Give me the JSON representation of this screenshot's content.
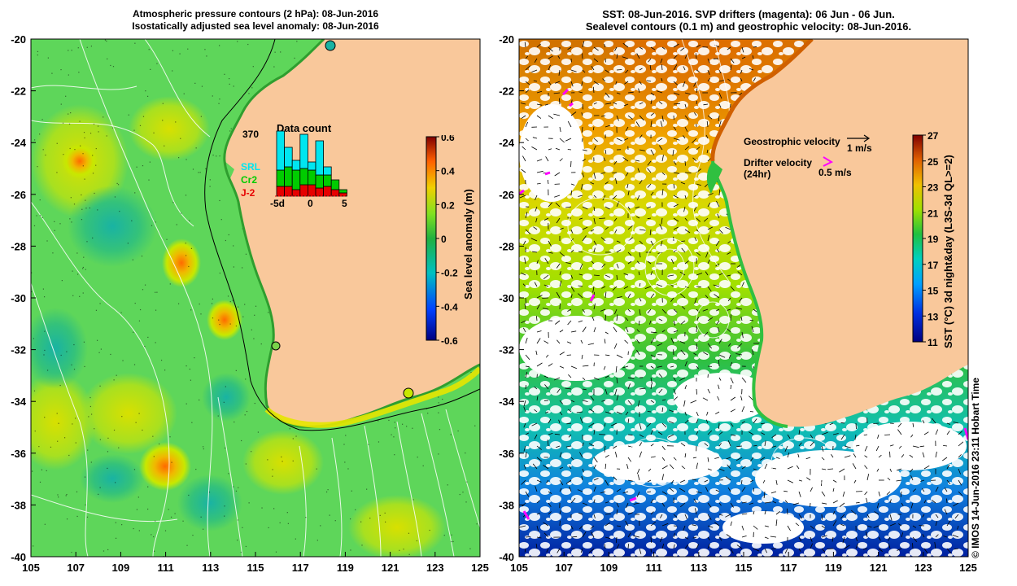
{
  "left_panel": {
    "title_line1": "Atmospheric pressure contours (2 hPa): 08-Jun-2016",
    "title_line2": "Isostatically adjusted sea level anomaly: 08-Jun-2016",
    "y_ticks": [
      "-20",
      "-22",
      "-24",
      "-26",
      "-28",
      "-30",
      "-32",
      "-34",
      "-36",
      "-38",
      "-40"
    ],
    "x_ticks": [
      "105",
      "107",
      "109",
      "111",
      "113",
      "115",
      "117",
      "119",
      "121",
      "123",
      "125"
    ],
    "colorbar": {
      "title": "Sea level anomaly (m)",
      "ticks": [
        "0.6",
        "0.4",
        "0.2",
        "0",
        "-0.2",
        "-0.4",
        "-0.6"
      ]
    },
    "data_count": {
      "title": "Data count",
      "max_label": "370",
      "legend": [
        "SRL",
        "Cr2",
        "J-2"
      ],
      "x_labels": [
        "-5d",
        "0",
        "5"
      ],
      "colors": {
        "SRL": "#00e6f0",
        "Cr2": "#00cc00",
        "J-2": "#e60000"
      }
    }
  },
  "right_panel": {
    "title_line1": "SST: 08-Jun-2016. SVP drifters (magenta): 06 Jun - 06 Jun.",
    "title_line2": "Sealevel contours (0.1 m) and geostrophic velocity: 08-Jun-2016.",
    "y_ticks": [
      "-20",
      "-22",
      "-24",
      "-26",
      "-28",
      "-30",
      "-32",
      "-34",
      "-36",
      "-38",
      "-40"
    ],
    "x_ticks": [
      "105",
      "107",
      "109",
      "111",
      "113",
      "115",
      "117",
      "119",
      "121",
      "123",
      "125"
    ],
    "legend": {
      "geostrophic_label": "Geostrophic velocity",
      "geostrophic_scale": "1 m/s",
      "drifter_label": "Drifter velocity",
      "drifter_sub": "(24hr)",
      "drifter_scale": "0.5 m/s"
    },
    "colorbar": {
      "title": "SST (°C) 3d night&day (L3S-3d QL>=2)",
      "ticks": [
        "27",
        "25",
        "23",
        "21",
        "19",
        "17",
        "15",
        "13",
        "11"
      ]
    }
  },
  "credit": "© IMOS 14-Jun-2016 23:11 Hobart Time",
  "colors": {
    "land": "#f9c89b",
    "ocean_green": "#5cd65c",
    "drifter": "#ff00ff"
  }
}
